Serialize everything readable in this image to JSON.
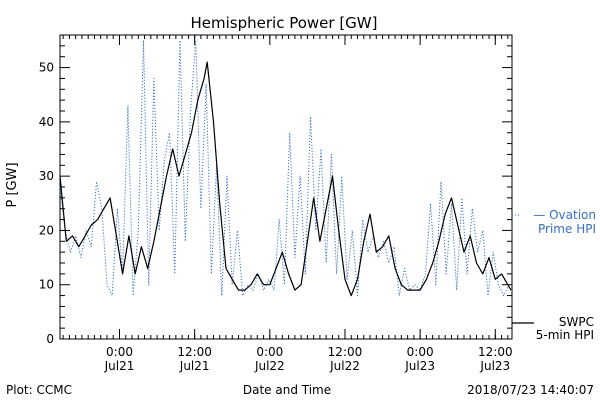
{
  "chart_data": {
    "type": "line",
    "title": "Hemispheric Power [GW]",
    "xlabel": "Date and Time",
    "ylabel": "P [GW]",
    "ylim": [
      0,
      56
    ],
    "xlim": [
      "2018-07-20 14:30",
      "2018-07-23 14:40"
    ],
    "x_ticks": [
      {
        "time": "2018-07-21 00:00",
        "label_top": "0:00",
        "label_bottom": "Jul21"
      },
      {
        "time": "2018-07-21 12:00",
        "label_top": "12:00",
        "label_bottom": "Jul21"
      },
      {
        "time": "2018-07-22 00:00",
        "label_top": "0:00",
        "label_bottom": "Jul22"
      },
      {
        "time": "2018-07-22 12:00",
        "label_top": "12:00",
        "label_bottom": "Jul22"
      },
      {
        "time": "2018-07-23 00:00",
        "label_top": "0:00",
        "label_bottom": "Jul23"
      },
      {
        "time": "2018-07-23 12:00",
        "label_top": "12:00",
        "label_bottom": "Jul23"
      }
    ],
    "y_ticks": [
      0,
      10,
      20,
      30,
      40,
      50
    ],
    "grid": false,
    "legend_position": "right",
    "series": [
      {
        "name_lines": [
          "— Ovation",
          "Prime HPI"
        ],
        "style": "dotted",
        "color": "#3a6fc4",
        "points": [
          [
            "2018-07-20 14:30",
            28
          ],
          [
            "2018-07-20 15:20",
            20
          ],
          [
            "2018-07-20 16:10",
            16
          ],
          [
            "2018-07-20 17:00",
            19
          ],
          [
            "2018-07-20 17:50",
            15
          ],
          [
            "2018-07-20 18:40",
            20
          ],
          [
            "2018-07-20 19:30",
            17
          ],
          [
            "2018-07-20 20:20",
            29
          ],
          [
            "2018-07-20 21:10",
            24
          ],
          [
            "2018-07-20 22:00",
            10
          ],
          [
            "2018-07-20 22:50",
            8
          ],
          [
            "2018-07-20 23:40",
            24
          ],
          [
            "2018-07-21 00:30",
            12
          ],
          [
            "2018-07-21 01:20",
            43
          ],
          [
            "2018-07-21 02:10",
            8
          ],
          [
            "2018-07-21 03:00",
            20
          ],
          [
            "2018-07-21 03:50",
            55
          ],
          [
            "2018-07-21 04:40",
            10
          ],
          [
            "2018-07-21 05:30",
            48
          ],
          [
            "2018-07-21 06:20",
            20
          ],
          [
            "2018-07-21 07:10",
            33
          ],
          [
            "2018-07-21 08:00",
            38
          ],
          [
            "2018-07-21 08:50",
            12
          ],
          [
            "2018-07-21 09:40",
            55
          ],
          [
            "2018-07-21 10:30",
            18
          ],
          [
            "2018-07-21 11:20",
            42
          ],
          [
            "2018-07-21 12:10",
            55
          ],
          [
            "2018-07-21 13:00",
            24
          ],
          [
            "2018-07-21 13:50",
            47
          ],
          [
            "2018-07-21 14:40",
            12
          ],
          [
            "2018-07-21 15:30",
            32
          ],
          [
            "2018-07-21 16:20",
            8
          ],
          [
            "2018-07-21 17:10",
            30
          ],
          [
            "2018-07-21 18:00",
            10
          ],
          [
            "2018-07-21 18:50",
            20
          ],
          [
            "2018-07-21 19:40",
            8
          ],
          [
            "2018-07-21 20:30",
            10
          ],
          [
            "2018-07-21 21:20",
            9
          ],
          [
            "2018-07-21 22:10",
            12
          ],
          [
            "2018-07-21 23:00",
            9
          ],
          [
            "2018-07-21 23:50",
            11
          ],
          [
            "2018-07-22 00:40",
            9
          ],
          [
            "2018-07-22 01:30",
            22
          ],
          [
            "2018-07-22 02:20",
            10
          ],
          [
            "2018-07-22 03:10",
            38
          ],
          [
            "2018-07-22 04:00",
            15
          ],
          [
            "2018-07-22 04:50",
            30
          ],
          [
            "2018-07-22 05:40",
            12
          ],
          [
            "2018-07-22 06:30",
            41
          ],
          [
            "2018-07-22 07:20",
            20
          ],
          [
            "2018-07-22 08:10",
            35
          ],
          [
            "2018-07-22 09:00",
            14
          ],
          [
            "2018-07-22 09:50",
            34
          ],
          [
            "2018-07-22 10:40",
            12
          ],
          [
            "2018-07-22 11:30",
            30
          ],
          [
            "2018-07-22 12:20",
            11
          ],
          [
            "2018-07-22 13:10",
            20
          ],
          [
            "2018-07-22 14:00",
            8
          ],
          [
            "2018-07-22 14:50",
            22
          ],
          [
            "2018-07-22 15:40",
            16
          ],
          [
            "2018-07-22 16:30",
            19
          ],
          [
            "2018-07-22 17:20",
            15
          ],
          [
            "2018-07-22 18:10",
            18
          ],
          [
            "2018-07-22 19:00",
            14
          ],
          [
            "2018-07-22 19:50",
            17
          ],
          [
            "2018-07-22 20:40",
            8
          ],
          [
            "2018-07-22 21:30",
            13
          ],
          [
            "2018-07-22 22:20",
            9
          ],
          [
            "2018-07-22 23:10",
            10
          ],
          [
            "2018-07-23 00:00",
            9
          ],
          [
            "2018-07-23 00:50",
            12
          ],
          [
            "2018-07-23 01:40",
            25
          ],
          [
            "2018-07-23 02:30",
            10
          ],
          [
            "2018-07-23 03:20",
            29
          ],
          [
            "2018-07-23 04:10",
            12
          ],
          [
            "2018-07-23 05:00",
            25
          ],
          [
            "2018-07-23 05:50",
            9
          ],
          [
            "2018-07-23 06:40",
            26
          ],
          [
            "2018-07-23 07:30",
            12
          ],
          [
            "2018-07-23 08:20",
            24
          ],
          [
            "2018-07-23 09:10",
            16
          ],
          [
            "2018-07-23 10:00",
            20
          ],
          [
            "2018-07-23 10:50",
            8
          ],
          [
            "2018-07-23 11:40",
            16
          ],
          [
            "2018-07-23 12:30",
            10
          ],
          [
            "2018-07-23 13:20",
            8
          ],
          [
            "2018-07-23 14:10",
            10
          ]
        ]
      },
      {
        "name_lines": [
          "SWPC",
          "5-min HPI"
        ],
        "style": "solid",
        "color": "#000000",
        "points": [
          [
            "2018-07-20 14:30",
            30
          ],
          [
            "2018-07-20 15:30",
            18
          ],
          [
            "2018-07-20 16:30",
            19
          ],
          [
            "2018-07-20 17:30",
            17
          ],
          [
            "2018-07-20 18:30",
            19
          ],
          [
            "2018-07-20 19:30",
            21
          ],
          [
            "2018-07-20 20:30",
            22
          ],
          [
            "2018-07-20 21:30",
            24
          ],
          [
            "2018-07-20 22:30",
            26
          ],
          [
            "2018-07-20 23:30",
            19
          ],
          [
            "2018-07-21 00:30",
            12
          ],
          [
            "2018-07-21 01:30",
            19
          ],
          [
            "2018-07-21 02:30",
            12
          ],
          [
            "2018-07-21 03:30",
            17
          ],
          [
            "2018-07-21 04:30",
            13
          ],
          [
            "2018-07-21 05:30",
            18
          ],
          [
            "2018-07-21 06:30",
            24
          ],
          [
            "2018-07-21 07:30",
            30
          ],
          [
            "2018-07-21 08:30",
            35
          ],
          [
            "2018-07-21 09:30",
            30
          ],
          [
            "2018-07-21 10:30",
            34
          ],
          [
            "2018-07-21 11:30",
            38
          ],
          [
            "2018-07-21 12:30",
            44
          ],
          [
            "2018-07-21 13:30",
            48
          ],
          [
            "2018-07-21 14:00",
            51
          ],
          [
            "2018-07-21 15:00",
            40
          ],
          [
            "2018-07-21 16:00",
            25
          ],
          [
            "2018-07-21 17:00",
            13
          ],
          [
            "2018-07-21 18:00",
            11
          ],
          [
            "2018-07-21 19:00",
            9
          ],
          [
            "2018-07-21 20:00",
            9
          ],
          [
            "2018-07-21 21:00",
            10
          ],
          [
            "2018-07-21 22:00",
            12
          ],
          [
            "2018-07-21 23:00",
            10
          ],
          [
            "2018-07-22 00:00",
            10
          ],
          [
            "2018-07-22 01:00",
            13
          ],
          [
            "2018-07-22 02:00",
            16
          ],
          [
            "2018-07-22 03:00",
            12
          ],
          [
            "2018-07-22 04:00",
            9
          ],
          [
            "2018-07-22 05:00",
            10
          ],
          [
            "2018-07-22 06:00",
            18
          ],
          [
            "2018-07-22 07:00",
            26
          ],
          [
            "2018-07-22 08:00",
            18
          ],
          [
            "2018-07-22 09:00",
            24
          ],
          [
            "2018-07-22 10:00",
            30
          ],
          [
            "2018-07-22 11:00",
            20
          ],
          [
            "2018-07-22 12:00",
            11
          ],
          [
            "2018-07-22 13:00",
            8
          ],
          [
            "2018-07-22 14:00",
            11
          ],
          [
            "2018-07-22 15:00",
            18
          ],
          [
            "2018-07-22 16:00",
            23
          ],
          [
            "2018-07-22 17:00",
            16
          ],
          [
            "2018-07-22 18:00",
            17
          ],
          [
            "2018-07-22 19:00",
            19
          ],
          [
            "2018-07-22 20:00",
            13
          ],
          [
            "2018-07-22 21:00",
            10
          ],
          [
            "2018-07-22 22:00",
            9
          ],
          [
            "2018-07-22 23:00",
            9
          ],
          [
            "2018-07-23 00:00",
            9
          ],
          [
            "2018-07-23 01:00",
            11
          ],
          [
            "2018-07-23 02:00",
            14
          ],
          [
            "2018-07-23 03:00",
            18
          ],
          [
            "2018-07-23 04:00",
            23
          ],
          [
            "2018-07-23 05:00",
            26
          ],
          [
            "2018-07-23 06:00",
            21
          ],
          [
            "2018-07-23 07:00",
            16
          ],
          [
            "2018-07-23 08:00",
            19
          ],
          [
            "2018-07-23 09:00",
            14
          ],
          [
            "2018-07-23 10:00",
            12
          ],
          [
            "2018-07-23 11:00",
            15
          ],
          [
            "2018-07-23 12:00",
            11
          ],
          [
            "2018-07-23 13:00",
            12
          ],
          [
            "2018-07-23 14:00",
            10
          ],
          [
            "2018-07-23 14:30",
            9
          ]
        ]
      }
    ]
  },
  "footer": {
    "left": "Plot: CCMC",
    "center": "Date and Time",
    "right": "2018/07/23 14:40:07"
  }
}
